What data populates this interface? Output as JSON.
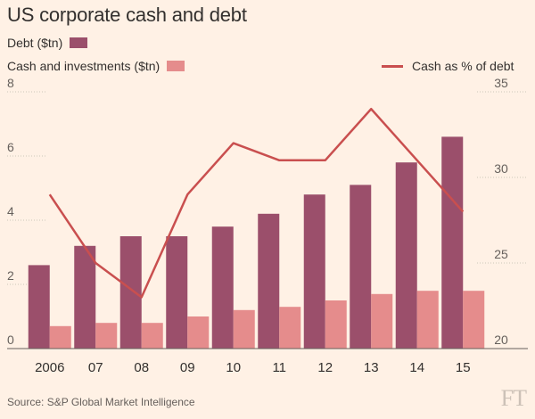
{
  "title": "US corporate cash and debt",
  "legend": {
    "debt": "Debt ($tn)",
    "cash": "Cash and investments ($tn)",
    "pct": "Cash as % of debt"
  },
  "source": "Source: S&P Global Market Intelligence",
  "logo": "FT",
  "colors": {
    "debt": "#9b4f6b",
    "cash": "#e58c8c",
    "pct_line": "#c94f4f",
    "background": "#fff1e5",
    "grid": "#cec6b9"
  },
  "chart_data": {
    "type": "bar",
    "categories": [
      "2006",
      "07",
      "08",
      "09",
      "10",
      "11",
      "12",
      "13",
      "14",
      "15"
    ],
    "series": [
      {
        "name": "Debt ($tn)",
        "axis": "left",
        "values": [
          2.6,
          3.2,
          3.5,
          3.5,
          3.8,
          4.2,
          4.8,
          5.1,
          5.8,
          6.6
        ]
      },
      {
        "name": "Cash and investments ($tn)",
        "axis": "left",
        "values": [
          0.7,
          0.8,
          0.8,
          1.0,
          1.2,
          1.3,
          1.5,
          1.7,
          1.8,
          1.8
        ]
      },
      {
        "name": "Cash as % of debt",
        "axis": "right",
        "type": "line",
        "values": [
          29,
          25,
          23,
          29,
          32,
          31,
          31,
          34,
          31,
          28
        ]
      }
    ],
    "left_axis": {
      "ylim": [
        0,
        8
      ],
      "ticks": [
        "0",
        "2",
        "4",
        "6",
        "8"
      ]
    },
    "right_axis": {
      "ylim": [
        20,
        35
      ],
      "ticks": [
        "20",
        "25",
        "30",
        "35"
      ]
    },
    "grid": true,
    "legend_position": "top"
  }
}
